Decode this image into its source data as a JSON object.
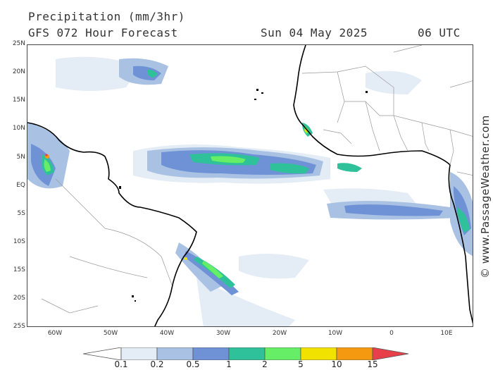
{
  "header": {
    "title": "Precipitation (mm/3hr)",
    "subtitle": "GFS 072 Hour Forecast",
    "date": "Sun 04 May 2025",
    "time": "06 UTC"
  },
  "map": {
    "lat_labels": [
      "25N",
      "20N",
      "15N",
      "10N",
      "5N",
      "EQ",
      "5S",
      "10S",
      "15S",
      "20S",
      "25S"
    ],
    "lon_labels": [
      "60W",
      "50W",
      "40W",
      "30W",
      "20W",
      "10W",
      "0",
      "10E"
    ]
  },
  "credit": "© www.PassageWeather.com",
  "legend": {
    "labels": [
      "0.1",
      "0.2",
      "0.5",
      "1",
      "2",
      "5",
      "10",
      "15"
    ],
    "colors": [
      "#ffffff",
      "#e4ecf6",
      "#a9c2e3",
      "#6f92d6",
      "#2fc29a",
      "#66ee66",
      "#f2e200",
      "#f59a10",
      "#e8404a"
    ]
  }
}
